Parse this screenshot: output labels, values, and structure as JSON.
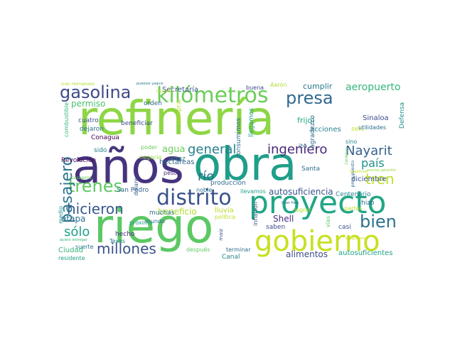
{
  "words": [
    {
      "text": "refinería",
      "color": "#8ed645"
    },
    {
      "text": "años",
      "color": "#46337e"
    },
    {
      "text": "obra",
      "color": "#1f9e89"
    },
    {
      "text": "riego",
      "color": "#5cc863"
    },
    {
      "text": "proyecto",
      "color": "#21a685"
    },
    {
      "text": "gobierno",
      "color": "#c8e020"
    },
    {
      "text": "distrito",
      "color": "#3b528b"
    },
    {
      "text": "kilómetros",
      "color": "#6ccd5a"
    },
    {
      "text": "gasolina",
      "color": "#3e4a89"
    },
    {
      "text": "presa",
      "color": "#31688e"
    },
    {
      "text": "trenes",
      "color": "#5ec962"
    },
    {
      "text": "pasajero",
      "color": "#2a788e"
    },
    {
      "text": "Nayarit",
      "color": "#34608d"
    },
    {
      "text": "tren",
      "color": "#bddf26"
    },
    {
      "text": "bien",
      "color": "#2c728e"
    },
    {
      "text": "hicieron",
      "color": "#38598c"
    },
    {
      "text": "general",
      "color": "#277f8e"
    },
    {
      "text": "ingeniero",
      "color": "#482878"
    },
    {
      "text": "millones",
      "color": "#3b528b"
    },
    {
      "text": "aeropuerto",
      "color": "#35b779"
    },
    {
      "text": "país",
      "color": "#21918c"
    },
    {
      "text": "río",
      "color": "#2c718e"
    },
    {
      "text": "sólo",
      "color": "#1fa088"
    },
    {
      "text": "alimentos",
      "color": "#3e4c8a"
    },
    {
      "text": "autosuficiencia",
      "color": "#3a548c"
    },
    {
      "text": "beneficio",
      "color": "#b0dd2f"
    },
    {
      "text": "etapa",
      "color": "#2e6e8e"
    },
    {
      "text": "agua",
      "color": "#6ccd5a"
    },
    {
      "text": "permiso",
      "color": "#4ac16d"
    },
    {
      "text": "Secretaría",
      "color": "#38598c"
    },
    {
      "text": "hectáreas",
      "color": "#33638d"
    },
    {
      "text": "Shell",
      "color": "#472d7b"
    },
    {
      "text": "autosuficientes",
      "color": "#1fa287"
    },
    {
      "text": "Sinaloa",
      "color": "#3e4a89"
    },
    {
      "text": "frijol",
      "color": "#22a884"
    },
    {
      "text": "cumplir",
      "color": "#2a788e"
    },
    {
      "text": "acciones",
      "color": "#26828e"
    },
    {
      "text": "agradezco",
      "color": "#31688e"
    },
    {
      "text": "Defensa",
      "color": "#21918c"
    },
    {
      "text": "diciembre",
      "color": "#3b528b"
    },
    {
      "text": "Revolución",
      "color": "#440154"
    },
    {
      "text": "arroz",
      "color": "#26828e"
    },
    {
      "text": "cuatro",
      "color": "#3b528b"
    },
    {
      "text": "dejaron",
      "color": "#2c728e"
    },
    {
      "text": "beneficiar",
      "color": "#3e4a89"
    },
    {
      "text": "comprar",
      "color": "#b5de2b"
    },
    {
      "text": "orden",
      "color": "#31688e"
    },
    {
      "text": "Conagua",
      "color": "#440154"
    },
    {
      "text": "sido",
      "color": "#277f8e"
    },
    {
      "text": "combustible",
      "color": "#35b779"
    },
    {
      "text": "negocio",
      "color": "#95d840"
    },
    {
      "text": "poder",
      "color": "#6ccd5a"
    },
    {
      "text": "dólares",
      "color": "#38598c"
    },
    {
      "text": "pesos",
      "color": "#482878"
    },
    {
      "text": "San Pedro",
      "color": "#33638d"
    },
    {
      "text": "producción",
      "color": "#31688e"
    },
    {
      "text": "lluvia",
      "color": "#b5de2b"
    },
    {
      "text": "llevamos",
      "color": "#1fa088"
    },
    {
      "text": "noble",
      "color": "#2c728e"
    },
    {
      "text": "Santa",
      "color": "#2e6e8e"
    },
    {
      "text": "hizo",
      "color": "#31688e"
    },
    {
      "text": "Centenario",
      "color": "#26828e"
    },
    {
      "text": "saben",
      "color": "#3e4a89"
    },
    {
      "text": "lograr",
      "color": "#b0dd2f"
    },
    {
      "text": "casi",
      "color": "#3b528b"
    },
    {
      "text": "vías",
      "color": "#5ec962"
    },
    {
      "text": "partes",
      "color": "#bddf26"
    },
    {
      "text": "muchas",
      "color": "#2c728e"
    },
    {
      "text": "hecho",
      "color": "#472d7b"
    },
    {
      "text": "mundo",
      "color": "#2e6e8e"
    },
    {
      "text": "próximo",
      "color": "#1f9e89"
    },
    {
      "text": "Texas",
      "color": "#2a788e"
    },
    {
      "text": "suerte",
      "color": "#2a788e"
    },
    {
      "text": "Ciudad",
      "color": "#35b779"
    },
    {
      "text": "residente",
      "color": "#1fa088"
    },
    {
      "text": "medio",
      "color": "#21918c"
    },
    {
      "text": "después",
      "color": "#5ec962"
    },
    {
      "text": "Canal",
      "color": "#26828e"
    },
    {
      "text": "terminar",
      "color": "#2e6e8e"
    },
    {
      "text": "maíz",
      "color": "#3e4c8a"
    },
    {
      "text": "inflación",
      "color": "#3b528b"
    },
    {
      "text": "política",
      "color": "#bddf26"
    },
    {
      "text": "consumimos",
      "color": "#2e6e8e"
    },
    {
      "text": "llegamos",
      "color": "#1fa088"
    },
    {
      "text": "iba",
      "color": "#31688e"
    },
    {
      "text": "seis",
      "color": "#bddf26"
    },
    {
      "text": "sino",
      "color": "#26828e"
    },
    {
      "text": "utilidades",
      "color": "#2e6e8e"
    },
    {
      "text": "buena",
      "color": "#3e4a89"
    },
    {
      "text": "Aarón",
      "color": "#b0dd2f"
    },
    {
      "text": "Iván Hernández",
      "color": "#b5de2b"
    },
    {
      "text": "pueblos yaquis",
      "color": "#2a788e"
    },
    {
      "text": "querido",
      "color": "#b5de2b"
    },
    {
      "text": "quiero entregar",
      "color": "#35b779"
    },
    {
      "text": "pasajeros",
      "color": "#6ccd5a"
    },
    {
      "text": "presupuesto",
      "color": "#31688e"
    },
    {
      "text": "Deer Park",
      "color": "#31688e"
    },
    {
      "text": "Cárdenas",
      "color": "#5ec962"
    },
    {
      "text": "Segalmex",
      "color": "#bddf26"
    },
    {
      "text": "precios garantía",
      "color": "#95d840"
    },
    {
      "text": "aseguramos",
      "color": "#c8e020"
    }
  ]
}
